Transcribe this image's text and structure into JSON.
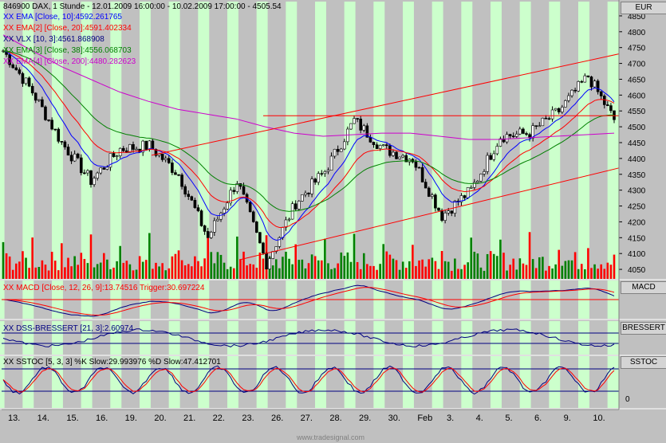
{
  "header": {
    "instrument": "846900 DAX, 1 Stunde - 12.01.2009 16:00:00 - 10.02.2009 17:00:00 - 4505.54",
    "currency": "EUR"
  },
  "legend": {
    "ema10": "XX EMA [Close, 10]:4592.261765",
    "ema20": "XX EMA[2] [Close, 20]:4591.402334",
    "vlx": "XX VLX [10, 3]:4561.868908",
    "ema38": "XX EMA[3] [Close, 38]:4556.068703",
    "ema200": "XX EMA[4] [Close, 200]:4480.282623"
  },
  "panels": {
    "macd": {
      "legend": "XX MACD [Close, 12, 26, 9]:13.74516 Trigger:30.697224",
      "axis_label": "MACD"
    },
    "dss": {
      "legend": "XX DSS-BRESSERT [21, 3]:2.60974",
      "axis_label": "BRESSERT"
    },
    "sstoc": {
      "legend": "XX SSTOC [5, 3, 3] %K Slow:29.993976 %D Slow:47.412701",
      "axis_label": "SSTOC",
      "tick": "0"
    }
  },
  "watermark": "www.tradesignal.com",
  "colors": {
    "ema10": "#0000ff",
    "ema20": "#ff0000",
    "vlx": "#000080",
    "ema38": "#008000",
    "ema200": "#cc00cc",
    "volume_up": "#008000",
    "volume_down": "#ff0000",
    "stripe": "#ccffcc",
    "trend": "#ff0000"
  },
  "chart_data": {
    "type": "candlestick",
    "y_ticks": [
      "4850",
      "4800",
      "4750",
      "4700",
      "4650",
      "4600",
      "4550",
      "4500",
      "4450",
      "4400",
      "4350",
      "4300",
      "4250",
      "4200",
      "4150",
      "4100",
      "4050"
    ],
    "ylim": [
      4020,
      4880
    ],
    "x_ticks": [
      "13.",
      "14.",
      "15.",
      "16.",
      "19.",
      "20.",
      "21.",
      "22.",
      "23.",
      "26.",
      "27.",
      "28.",
      "29.",
      "30.",
      "Feb",
      "3.",
      "4.",
      "5.",
      "6.",
      "9.",
      "10."
    ],
    "close_key_points": [
      {
        "day": "12.",
        "close": 4740
      },
      {
        "day": "13.",
        "close": 4610
      },
      {
        "day": "14.",
        "close": 4450
      },
      {
        "day": "15.",
        "close": 4330
      },
      {
        "day": "16.",
        "close": 4430
      },
      {
        "day": "19.",
        "close": 4440
      },
      {
        "day": "20.",
        "close": 4350
      },
      {
        "day": "21.",
        "close": 4150
      },
      {
        "day": "22.",
        "close": 4330
      },
      {
        "day": "23.",
        "close": 4070
      },
      {
        "day": "26.",
        "close": 4260
      },
      {
        "day": "27.",
        "close": 4360
      },
      {
        "day": "28.",
        "close": 4520
      },
      {
        "day": "29.",
        "close": 4430
      },
      {
        "day": "30.",
        "close": 4400
      },
      {
        "day": "Feb",
        "close": 4220
      },
      {
        "day": "3.",
        "close": 4300
      },
      {
        "day": "4.",
        "close": 4470
      },
      {
        "day": "5.",
        "close": 4480
      },
      {
        "day": "6.",
        "close": 4550
      },
      {
        "day": "9.",
        "close": 4660
      },
      {
        "day": "10.",
        "close": 4505
      }
    ],
    "horizontal_line": 4535,
    "ema200_points": [
      4790,
      4740,
      4690,
      4650,
      4610,
      4580,
      4555,
      4540,
      4525,
      4500,
      4480,
      4470,
      4475,
      4480,
      4480,
      4470,
      4460,
      4460,
      4465,
      4470,
      4475,
      4480
    ]
  }
}
